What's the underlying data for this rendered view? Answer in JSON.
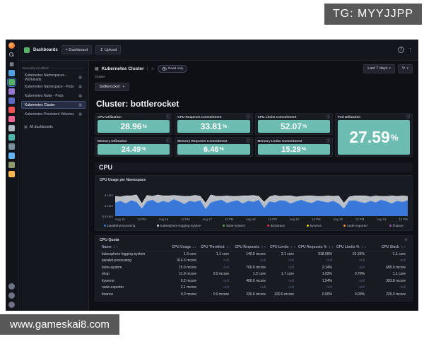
{
  "watermarks": {
    "top": "TG: MYYJJPP",
    "bottom": "www.gameskai8.com"
  },
  "colors": {
    "accent_teal": "#6dbcb2",
    "accent_blue": "#3274d9",
    "panel_bg": "#181b22",
    "app_bg": "#0e1015"
  },
  "rail": {
    "icons": [
      {
        "name": "grafana-logo",
        "type": "logo"
      },
      {
        "name": "search-icon",
        "type": "search"
      },
      {
        "name": "apps-icon",
        "glyph": "▦"
      },
      {
        "name": "plugin-blue-icon",
        "color": "#4fa1e0",
        "sq": true
      },
      {
        "name": "dashboards-app-icon",
        "color": "#57b36a",
        "sq": true,
        "active": true
      },
      {
        "name": "plugin-purple-icon",
        "color": "#9575cd",
        "sq": true
      },
      {
        "name": "plugin-indigo-icon",
        "color": "#5c6bc0",
        "sq": true
      },
      {
        "name": "plugin-red-icon",
        "color": "#ef5350",
        "sq": true
      },
      {
        "name": "plugin-pink-icon",
        "color": "#f06292",
        "sq": true
      },
      {
        "name": "plugin-gray-icon",
        "color": "#aeb6bf",
        "sq": true
      },
      {
        "name": "plugin-teal-icon",
        "color": "#4db6ac",
        "sq": true
      },
      {
        "name": "plugin-slate-icon",
        "color": "#78909c",
        "sq": true
      },
      {
        "name": "plugin-lightblue-icon",
        "color": "#64b5f6",
        "sq": true
      },
      {
        "name": "plugin-olive-icon",
        "color": "#8d9b6a",
        "sq": true
      },
      {
        "name": "plugin-orange-icon",
        "color": "#ffb74d",
        "sq": true
      },
      {
        "name": "spacer",
        "spacer": true
      },
      {
        "name": "shield-icon",
        "color": "#6d7383"
      },
      {
        "name": "help-icon",
        "color": "#6d7383"
      },
      {
        "name": "settings-icon",
        "color": "#6d7383"
      }
    ]
  },
  "nav": {
    "breadcrumb": "Dashboards",
    "new_dashboard_label": "+ Dashboard",
    "upload_label": "Upload",
    "help_glyph": "?",
    "kebab_glyph": "⋮"
  },
  "sidebar": {
    "section_label": "Recently modified",
    "items": [
      {
        "label": "Kubernetes Namespaces - Workloads",
        "active": false
      },
      {
        "label": "Kubernetes Namespace - Pods",
        "active": false
      },
      {
        "label": "Kubernetes Node - Pods",
        "active": false
      },
      {
        "label": "Kubernetes Cluster",
        "active": true
      },
      {
        "label": "Kubernetes Persistent Volumes",
        "active": false
      }
    ],
    "all_dashboards_label": "All dashboards"
  },
  "toolbar": {
    "dashboard_title": "Kubernetes Cluster",
    "read_only_label": "Read only",
    "time_range_label": "Last 7 days",
    "refresh_glyph": "↻"
  },
  "variables": {
    "cluster_label": "Cluster",
    "cluster_value": "bottlerocket"
  },
  "heading": "Cluster: bottlerocket",
  "stats": [
    {
      "title": "CPU Utilization",
      "value": "28.96",
      "unit": "%"
    },
    {
      "title": "CPU Requests Commitment",
      "value": "33.81",
      "unit": "%"
    },
    {
      "title": "CPU Limits Commitment",
      "value": "52.07",
      "unit": "%"
    },
    {
      "title": "Pod Utilization",
      "value": "27.59",
      "unit": "%",
      "large": true
    },
    {
      "title": "Memory Utilization",
      "value": "24.49",
      "unit": "%"
    },
    {
      "title": "Memory Requests Commitment",
      "value": "6.46",
      "unit": "%"
    },
    {
      "title": "Memory Limits Commitment",
      "value": "15.29",
      "unit": "%"
    }
  ],
  "section": {
    "title": "CPU"
  },
  "chart_data": {
    "type": "area",
    "stacked": true,
    "title": "CPU Usage per Namespace",
    "ylim": [
      0,
      6
    ],
    "y_ticks": [
      {
        "label": "4 core",
        "value": 4
      },
      {
        "label": "2 core",
        "value": 2
      },
      {
        "label": "0 mcore",
        "value": 0
      }
    ],
    "x_ticks": [
      "Aug 15",
      "12 PM",
      "Aug 16",
      "12 PM",
      "Aug 17",
      "12 PM",
      "Aug 18",
      "12 PM",
      "Aug 19",
      "12 PM",
      "Aug 20",
      "12 PM",
      "Aug 21",
      "12 PM"
    ],
    "series": [
      {
        "name": "parallel-processing",
        "color": "#3274d9",
        "values": [
          2.6,
          2.9,
          2.4,
          3.0,
          2.7,
          1.4,
          2.8,
          3.1,
          2.5,
          2.9,
          2.6,
          3.2,
          2.8,
          2.3,
          2.9,
          2.7,
          3.0,
          1.3,
          2.6,
          2.9,
          3.1,
          2.5,
          2.8,
          3.0,
          2.4,
          2.9,
          2.7,
          3.1,
          1.5,
          2.8,
          2.6,
          3.0,
          2.9,
          2.4,
          2.8,
          3.1,
          2.7,
          2.5,
          3.0,
          2.8,
          2.6,
          2.9,
          2.4,
          1.4,
          2.9,
          3.0,
          2.7,
          2.5,
          2.9,
          2.6,
          3.1,
          2.8,
          2.4,
          2.9,
          2.7,
          3.0
        ]
      },
      {
        "name": "kubesphere-logging-system",
        "color": "#c9cdd4",
        "values": [
          1.2,
          0.8,
          1.5,
          0.9,
          1.4,
          1.0,
          1.2,
          0.7,
          1.6,
          1.0,
          1.3,
          0.8,
          1.1,
          1.5,
          0.9,
          1.3,
          0.8,
          1.2,
          1.5,
          0.9,
          0.7,
          1.4,
          1.0,
          0.8,
          1.5,
          1.0,
          1.3,
          0.7,
          1.2,
          0.9,
          1.4,
          0.8,
          1.0,
          1.5,
          0.9,
          0.7,
          1.2,
          1.4,
          0.8,
          1.0,
          1.3,
          0.9,
          1.5,
          1.1,
          0.8,
          0.9,
          1.2,
          1.4,
          0.8,
          1.3,
          0.7,
          1.0,
          1.5,
          0.9,
          1.2,
          0.8
        ]
      }
    ],
    "legend": [
      {
        "name": "parallel-processing",
        "color": "#3274d9"
      },
      {
        "name": "kubesphere-logging-system",
        "color": "#c9cdd4"
      },
      {
        "name": "kube-system",
        "color": "#56a64b"
      },
      {
        "name": "dynatrace",
        "color": "#e02f44"
      },
      {
        "name": "kyverno",
        "color": "#f2cc0c"
      },
      {
        "name": "node-exporter",
        "color": "#ff9830"
      },
      {
        "name": "finance",
        "color": "#a352cc"
      }
    ],
    "legend_position": "bottom",
    "grid": true
  },
  "table": {
    "title": "CPU Quota",
    "gear_glyph": "⚙",
    "columns": [
      {
        "label": "Name",
        "sort": "↕ ▾"
      },
      {
        "label": "CPU Usage",
        "sort": "▴ ▾"
      },
      {
        "label": "CPU Throttled",
        "sort": "↕ ▾"
      },
      {
        "label": "CPU Requests",
        "sort": "↕ ▾"
      },
      {
        "label": "CPU Limits",
        "sort": "↕ ▾"
      },
      {
        "label": "CPU Requests %",
        "sort": "↕ ▾"
      },
      {
        "label": "CPU Limits %",
        "sort": "↕ ▾"
      },
      {
        "label": "CPU Slack",
        "sort": "↕ ▾"
      }
    ],
    "rows": [
      [
        "kubesphere-logging-system",
        "1.3 core",
        "1.1 core",
        "140.0 mcore",
        "2.1 core",
        "918.90%",
        "61.26%",
        "-1.1 core"
      ],
      [
        "parallel-processing",
        "914.3 mcore",
        "null",
        "null",
        "null",
        "null",
        "null",
        "null"
      ],
      [
        "kube-system",
        "15.0 mcore",
        "null",
        "700.0 mcore",
        "null",
        "2.14%",
        "null",
        "685.0 mcore"
      ],
      [
        "shop",
        "11.9 mcore",
        "0.0 mcore",
        "1.2 core",
        "1.7 core",
        "1.03%",
        "0.70%",
        "1.1 core"
      ],
      [
        "kyverno",
        "6.2 mcore",
        "null",
        "400.0 mcore",
        "null",
        "1.54%",
        "null",
        "393.8 mcore"
      ],
      [
        "node-exporter",
        "2.1 mcore",
        "null",
        "null",
        "null",
        "null",
        "null",
        "null"
      ],
      [
        "finance",
        "0.0 mcore",
        "0.0 mcore",
        "220.0 mcore",
        "220.0 mcore",
        "0.00%",
        "0.00%",
        "220.0 mcore"
      ]
    ]
  }
}
